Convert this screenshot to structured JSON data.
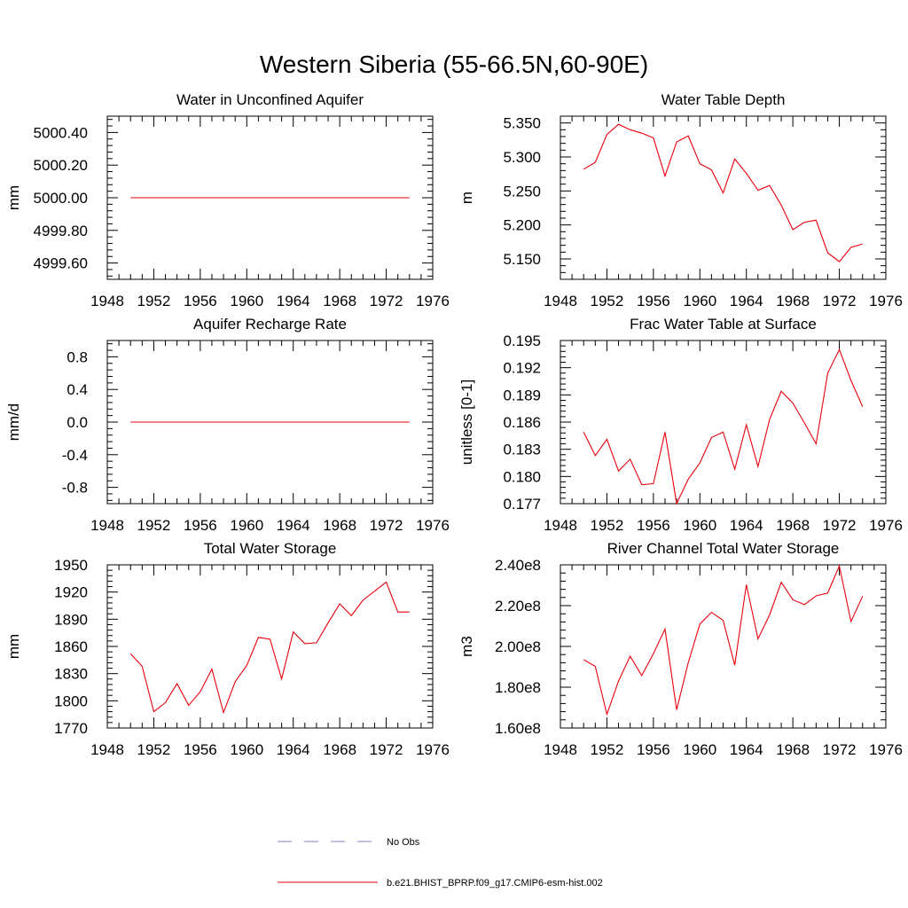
{
  "figure": {
    "title": "Western Siberia (55-66.5N,60-90E)"
  },
  "legend": {
    "entries": [
      {
        "label": "No Obs",
        "color": "#7f7fbf",
        "dash": true
      },
      {
        "label": "b.e21.BHIST_BPRP.f09_g17.CMIP6-esm-hist.002",
        "color": "#e8000b",
        "dash": false
      }
    ]
  },
  "chart_data": [
    {
      "type": "line",
      "title": "Water in Unconfined Aquifer",
      "ylabel": "mm",
      "xlim": [
        1948,
        1976
      ],
      "xticks": [
        "1948",
        "1952",
        "1956",
        "1960",
        "1964",
        "1968",
        "1972",
        "1976"
      ],
      "ylim": [
        4999.5,
        5000.5
      ],
      "yticks": [
        4999.6,
        4999.8,
        5000.0,
        5000.2,
        5000.4
      ],
      "ytick_labels": [
        "4999.60",
        "4999.80",
        "5000.00",
        "5000.20",
        "5000.40"
      ],
      "series": [
        {
          "color": "#e8000b",
          "x": [
            1950,
            1951,
            1952,
            1953,
            1954,
            1955,
            1956,
            1957,
            1958,
            1959,
            1960,
            1961,
            1962,
            1963,
            1964,
            1965,
            1966,
            1967,
            1968,
            1969,
            1970,
            1971,
            1972,
            1973,
            1974
          ],
          "values": [
            5000,
            5000,
            5000,
            5000,
            5000,
            5000,
            5000,
            5000,
            5000,
            5000,
            5000,
            5000,
            5000,
            5000,
            5000,
            5000,
            5000,
            5000,
            5000,
            5000,
            5000,
            5000,
            5000,
            5000,
            5000
          ]
        }
      ]
    },
    {
      "type": "line",
      "title": "Water Table Depth",
      "ylabel": "m",
      "xlim": [
        1948,
        1976
      ],
      "xticks": [
        "1948",
        "1952",
        "1956",
        "1960",
        "1964",
        "1968",
        "1972",
        "1976"
      ],
      "ylim": [
        5.12,
        5.36
      ],
      "yticks": [
        5.15,
        5.2,
        5.25,
        5.3,
        5.35
      ],
      "ytick_labels": [
        "5.150",
        "5.200",
        "5.250",
        "5.300",
        "5.350"
      ],
      "series": [
        {
          "color": "#e8000b",
          "x": [
            1950,
            1951,
            1952,
            1953,
            1954,
            1955,
            1956,
            1957,
            1958,
            1959,
            1960,
            1961,
            1962,
            1963,
            1964,
            1965,
            1966,
            1967,
            1968,
            1969,
            1970,
            1971,
            1972,
            1973,
            1974
          ],
          "values": [
            5.282,
            5.292,
            5.333,
            5.348,
            5.34,
            5.335,
            5.328,
            5.272,
            5.322,
            5.331,
            5.29,
            5.281,
            5.247,
            5.297,
            5.276,
            5.251,
            5.258,
            5.229,
            5.193,
            5.204,
            5.207,
            5.159,
            5.146,
            5.167,
            5.172
          ]
        }
      ]
    },
    {
      "type": "line",
      "title": "Aquifer Recharge Rate",
      "ylabel": "mm/d",
      "xlim": [
        1948,
        1976
      ],
      "xticks": [
        "1948",
        "1952",
        "1956",
        "1960",
        "1964",
        "1968",
        "1972",
        "1976"
      ],
      "ylim": [
        -1.0,
        1.0
      ],
      "yticks": [
        -0.8,
        -0.4,
        0.0,
        0.4,
        0.8
      ],
      "ytick_labels": [
        "-0.8",
        "-0.4",
        "0.0",
        "0.4",
        "0.8"
      ],
      "series": [
        {
          "color": "#e8000b",
          "x": [
            1950,
            1951,
            1952,
            1953,
            1954,
            1955,
            1956,
            1957,
            1958,
            1959,
            1960,
            1961,
            1962,
            1963,
            1964,
            1965,
            1966,
            1967,
            1968,
            1969,
            1970,
            1971,
            1972,
            1973,
            1974
          ],
          "values": [
            0,
            0,
            0,
            0,
            0,
            0,
            0,
            0,
            0,
            0,
            0,
            0,
            0,
            0,
            0,
            0,
            0,
            0,
            0,
            0,
            0,
            0,
            0,
            0,
            0
          ]
        }
      ]
    },
    {
      "type": "line",
      "title": "Frac Water Table at Surface",
      "ylabel": "unitless [0-1]",
      "xlim": [
        1948,
        1976
      ],
      "xticks": [
        "1948",
        "1952",
        "1956",
        "1960",
        "1964",
        "1968",
        "1972",
        "1976"
      ],
      "ylim": [
        0.177,
        0.195
      ],
      "yticks": [
        0.177,
        0.18,
        0.183,
        0.186,
        0.189,
        0.192,
        0.195
      ],
      "ytick_labels": [
        "0.177",
        "0.180",
        "0.183",
        "0.186",
        "0.189",
        "0.192",
        "0.195"
      ],
      "series": [
        {
          "color": "#e8000b",
          "x": [
            1950,
            1951,
            1952,
            1953,
            1954,
            1955,
            1956,
            1957,
            1958,
            1959,
            1960,
            1961,
            1962,
            1963,
            1964,
            1965,
            1966,
            1967,
            1968,
            1969,
            1970,
            1971,
            1972,
            1973,
            1974
          ],
          "values": [
            0.1849,
            0.1823,
            0.1841,
            0.1806,
            0.1819,
            0.1791,
            0.1792,
            0.1849,
            0.177,
            0.1797,
            0.1815,
            0.1843,
            0.1849,
            0.1808,
            0.1857,
            0.1811,
            0.1863,
            0.1894,
            0.1881,
            0.1859,
            0.1836,
            0.1914,
            0.194,
            0.1906,
            0.1877
          ]
        }
      ]
    },
    {
      "type": "line",
      "title": "Total Water Storage",
      "ylabel": "mm",
      "xlim": [
        1948,
        1976
      ],
      "xticks": [
        "1948",
        "1952",
        "1956",
        "1960",
        "1964",
        "1968",
        "1972",
        "1976"
      ],
      "ylim": [
        1770,
        1950
      ],
      "yticks": [
        1770,
        1800,
        1830,
        1860,
        1890,
        1920,
        1950
      ],
      "ytick_labels": [
        "1770",
        "1800",
        "1830",
        "1860",
        "1890",
        "1920",
        "1950"
      ],
      "series": [
        {
          "color": "#e8000b",
          "x": [
            1950,
            1951,
            1952,
            1953,
            1954,
            1955,
            1956,
            1957,
            1958,
            1959,
            1960,
            1961,
            1962,
            1963,
            1964,
            1965,
            1966,
            1967,
            1968,
            1969,
            1970,
            1971,
            1972,
            1973,
            1974
          ],
          "values": [
            1852,
            1838,
            1788,
            1798,
            1819,
            1795,
            1810,
            1835,
            1787,
            1821,
            1839,
            1870,
            1868,
            1824,
            1876,
            1863,
            1864,
            1886,
            1907,
            1894,
            1911,
            1921,
            1931,
            1898,
            1898
          ]
        }
      ]
    },
    {
      "type": "line",
      "title": "River Channel Total Water Storage",
      "ylabel": "m3",
      "xlim": [
        1948,
        1976
      ],
      "xticks": [
        "1948",
        "1952",
        "1956",
        "1960",
        "1964",
        "1968",
        "1972",
        "1976"
      ],
      "ylim": [
        160000000.0,
        240000000.0
      ],
      "yticks": [
        160000000.0,
        180000000.0,
        200000000.0,
        220000000.0,
        240000000.0
      ],
      "ytick_labels": [
        "1.60e8",
        "1.80e8",
        "2.00e8",
        "2.20e8",
        "2.40e8"
      ],
      "series": [
        {
          "color": "#e8000b",
          "x": [
            1950,
            1951,
            1952,
            1953,
            1954,
            1955,
            1956,
            1957,
            1958,
            1959,
            1960,
            1961,
            1962,
            1963,
            1964,
            1965,
            1966,
            1967,
            1968,
            1969,
            1970,
            1971,
            1972,
            1973,
            1974
          ],
          "values": [
            193500000.0,
            190200000.0,
            166700000.0,
            183000000.0,
            195200000.0,
            185700000.0,
            196400000.0,
            208500000.0,
            168900000.0,
            192000000.0,
            211000000.0,
            216700000.0,
            212800000.0,
            190800000.0,
            230300000.0,
            203700000.0,
            215500000.0,
            231500000.0,
            222900000.0,
            220500000.0,
            224800000.0,
            226200000.0,
            239500000.0,
            212200000.0,
            224600000.0
          ]
        }
      ]
    }
  ]
}
